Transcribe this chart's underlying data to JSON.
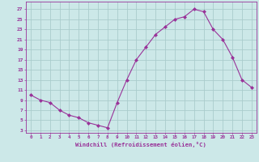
{
  "x": [
    0,
    1,
    2,
    3,
    4,
    5,
    6,
    7,
    8,
    9,
    10,
    11,
    12,
    13,
    14,
    15,
    16,
    17,
    18,
    19,
    20,
    21,
    22,
    23
  ],
  "y": [
    10,
    9,
    8.5,
    7,
    6,
    5.5,
    4.5,
    4,
    3.5,
    8.5,
    13,
    17,
    19.5,
    22,
    23.5,
    25,
    25.5,
    27,
    26.5,
    23,
    21,
    17.5,
    13,
    11.5
  ],
  "line_color": "#993399",
  "marker_color": "#993399",
  "bg_color": "#cce8e8",
  "grid_color": "#aacccc",
  "ylabel_ticks": [
    3,
    5,
    7,
    9,
    11,
    13,
    15,
    17,
    19,
    21,
    23,
    25,
    27
  ],
  "ylim": [
    2.5,
    28.5
  ],
  "xlim": [
    -0.5,
    23.5
  ],
  "figsize": [
    3.2,
    2.0
  ],
  "dpi": 100,
  "xlabel": "Windchill (Refroidissement éolien,°C)",
  "xlabel_color": "#993399",
  "tick_color": "#993399",
  "spine_color": "#993399"
}
